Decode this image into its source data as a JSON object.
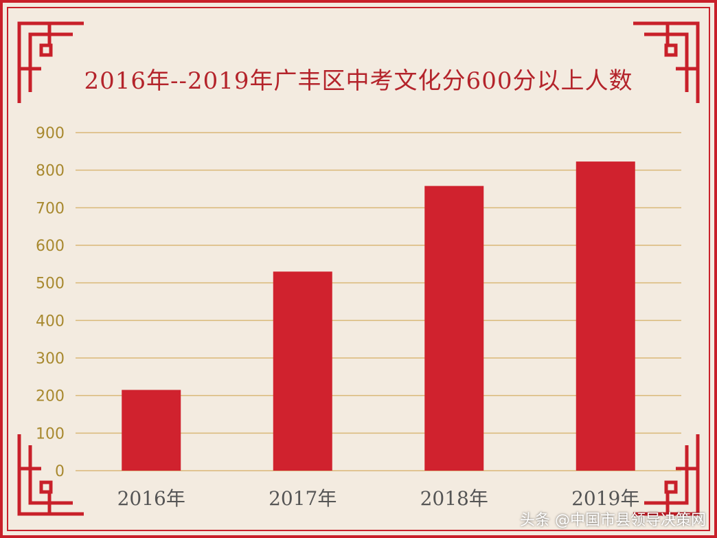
{
  "colors": {
    "bar": "#d0222e",
    "grid": "#d9b877",
    "tick_text": "#a8892f",
    "border": "#c8202a",
    "background": "#f3ebe0"
  },
  "chart_data": {
    "type": "bar",
    "title": "2016年--2019年广丰区中考文化分600分以上人数",
    "categories": [
      "2016年",
      "2017年",
      "2018年",
      "2019年"
    ],
    "values": [
      215,
      530,
      758,
      823
    ],
    "ylim": [
      0,
      900
    ],
    "yticks": [
      0,
      100,
      200,
      300,
      400,
      500,
      600,
      700,
      800,
      900
    ],
    "grid": true
  },
  "watermark": "头条 @中国市县领导决策网"
}
